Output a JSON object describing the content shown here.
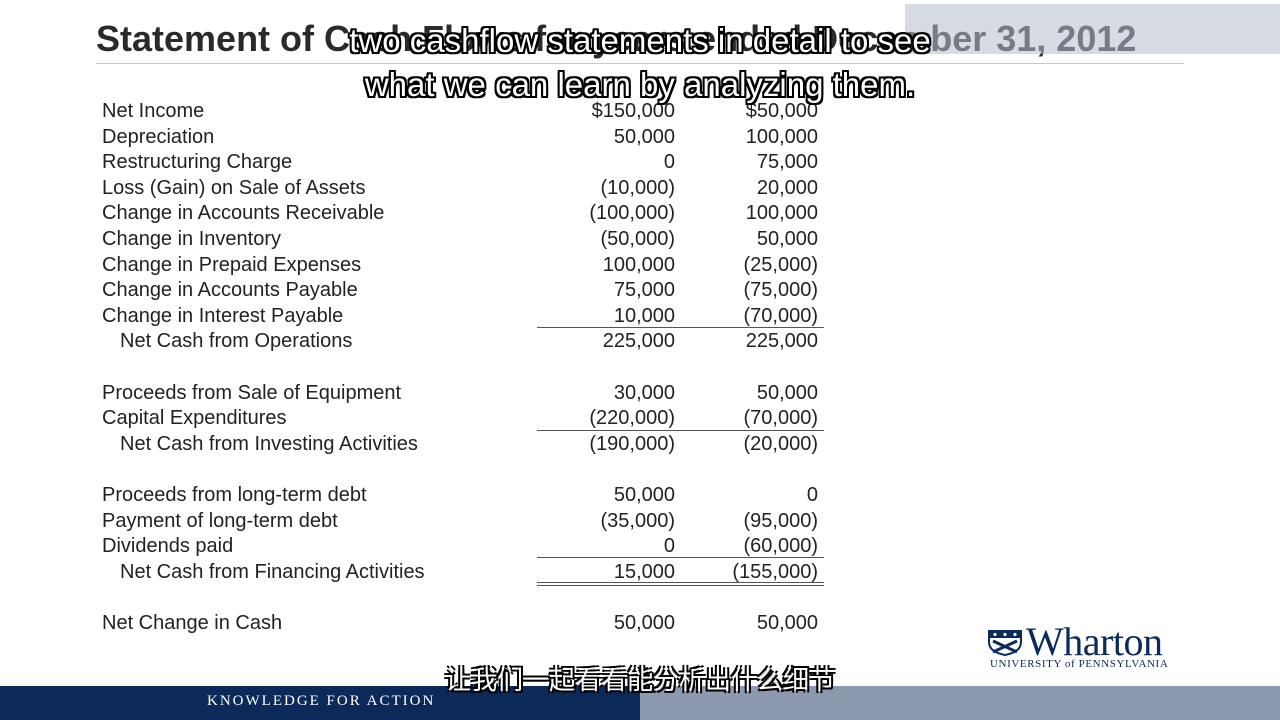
{
  "slide": {
    "title": "Statement of Cash Flows for years ended December 31, 2012"
  },
  "statement": {
    "rows": [
      {
        "label": "Net Income",
        "v1": "$150,000",
        "v2": "$50,000"
      },
      {
        "label": "Depreciation",
        "v1": "50,000",
        "v2": "100,000"
      },
      {
        "label": "Restructuring Charge",
        "v1": "0",
        "v2": "75,000"
      },
      {
        "label": "Loss (Gain) on Sale of Assets",
        "v1": "(10,000)",
        "v2": "20,000"
      },
      {
        "label": "Change in Accounts Receivable",
        "v1": "(100,000)",
        "v2": "100,000"
      },
      {
        "label": "Change in Inventory",
        "v1": "(50,000)",
        "v2": "50,000"
      },
      {
        "label": "Change in Prepaid Expenses",
        "v1": "100,000",
        "v2": "(25,000)"
      },
      {
        "label": "Change in Accounts Payable",
        "v1": "75,000",
        "v2": "(75,000)"
      },
      {
        "label": "Change in Interest Payable",
        "v1": "10,000",
        "v2": "(70,000)"
      },
      {
        "label": "Net Cash from Operations",
        "v1": "225,000",
        "v2": "225,000"
      },
      {
        "label": "Proceeds from Sale of Equipment",
        "v1": "30,000",
        "v2": "50,000"
      },
      {
        "label": "Capital Expenditures",
        "v1": "(220,000)",
        "v2": "(70,000)"
      },
      {
        "label": "Net Cash from Investing Activities",
        "v1": "(190,000)",
        "v2": "(20,000)"
      },
      {
        "label": "Proceeds from long-term debt",
        "v1": "50,000",
        "v2": "0"
      },
      {
        "label": "Payment of long-term debt",
        "v1": "(35,000)",
        "v2": "(95,000)"
      },
      {
        "label": "Dividends paid",
        "v1": "0",
        "v2": "(60,000)"
      },
      {
        "label": "Net Cash from Financing Activities",
        "v1": "15,000",
        "v2": "(155,000)"
      },
      {
        "label": "Net Change in Cash",
        "v1": "50,000",
        "v2": "50,000"
      }
    ]
  },
  "captions": {
    "en_line1": "two cashflow statements in detail to see",
    "en_line2": "what we can learn by analyzing them.",
    "zh": "让我们一起看看能分析出什么细节"
  },
  "logo": {
    "name": "Wharton",
    "subtitle": "UNIVERSITY of PENNSYLVANIA"
  },
  "footer": {
    "tagline": "KNOWLEDGE FOR ACTION"
  },
  "colors": {
    "navy": "#0b2a5a",
    "footer_gray": "#8c99ae"
  }
}
